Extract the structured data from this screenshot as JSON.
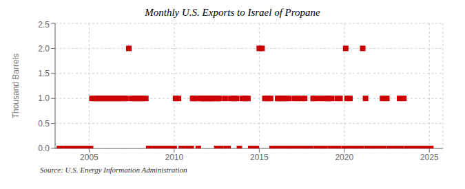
{
  "chart_data": {
    "type": "scatter",
    "title": "Monthly U.S. Exports to Israel of Propane",
    "y_label": "Thousand Barrels",
    "annotations": [
      "Source: U.S. Energy Information Administration"
    ],
    "color": "#cc0000",
    "marker": "square",
    "grid": true,
    "xlim": [
      2003.0,
      2025.8
    ],
    "xticks": [
      2005,
      2010,
      2015,
      2020,
      2025
    ],
    "ylim": [
      0,
      2.5
    ],
    "yticks": [
      {
        "value": 0,
        "label": "0.0"
      },
      0.5,
      {
        "value": 1,
        "label": "1.0"
      },
      1.5,
      {
        "value": 2,
        "label": "2.0"
      },
      2.5
    ],
    "x": [
      2003.25,
      2003.5,
      2003.75,
      2004,
      2004.1666666666667,
      2004.3333333333333,
      2004.5,
      2004.6666666666667,
      2004.8333333333333,
      2005.0833333333333,
      2005.1666666666667,
      2005.3333333333333,
      2005.5,
      2005.6666666666667,
      2005.8333333333333,
      2006,
      2006.1666666666667,
      2006.3333333333333,
      2006.5,
      2006.6666666666667,
      2006.8333333333333,
      2007,
      2007.1666666666667,
      2007.3333333333333,
      2007.5,
      2007.6666666666667,
      2007.8333333333333,
      2008,
      2008.1666666666667,
      2008.3333333333333,
      2008.5,
      2008.6666666666667,
      2008.8333333333333,
      2009,
      2009.1666666666667,
      2009.3333333333333,
      2009.5,
      2009.6666666666667,
      2009.8333333333333,
      2010,
      2010.0833333333333,
      2010.25,
      2010.4166666666667,
      2010.5833333333333,
      2010.75,
      2011,
      2011.0833333333333,
      2011.1666666666667,
      2011.3333333333333,
      2011.4166666666667,
      2011.5833333333333,
      2011.6666666666667,
      2011.75,
      2011.8333333333333,
      2012,
      2012.0833333333333,
      2012.1666666666667,
      2012.25,
      2012.4166666666667,
      2012.5,
      2012.5833333333333,
      2012.6666666666667,
      2012.75,
      2013,
      2013.0833333333333,
      2013.1666666666667,
      2013.3333333333333,
      2013.5,
      2013.6666666666667,
      2013.8333333333333,
      2014,
      2014.1666666666667,
      2014.3333333333333,
      2014.5,
      2014.6666666666667,
      2014.8333333333333,
      2015,
      2015.1666666666667,
      2015.3333333333333,
      2015.5,
      2015.6666666666667,
      2015.75,
      2016,
      2016.0833333333333,
      2016.1666666666667,
      2016.25,
      2016.3333333333333,
      2016.4166666666667,
      2016.5,
      2016.5833333333333,
      2016.6666666666667,
      2016.75,
      2016.8333333333333,
      2017,
      2017.0833333333333,
      2017.1666666666667,
      2017.25,
      2017.3333333333333,
      2017.4166666666667,
      2017.5,
      2017.5833333333333,
      2017.6666666666667,
      2017.8333333333333,
      2018,
      2018.1666666666667,
      2018.25,
      2018.3333333333333,
      2018.4166666666667,
      2018.5,
      2018.5833333333333,
      2018.6666666666667,
      2018.75,
      2018.8333333333333,
      2019,
      2019.0833333333333,
      2019.1666666666667,
      2019.25,
      2019.3333333333333,
      2019.4166666666667,
      2019.5,
      2019.5833333333333,
      2019.6666666666667,
      2019.75,
      2020,
      2020.0833333333333,
      2020.1666666666667,
      2020.25,
      2020.3333333333333,
      2020.4166666666667,
      2020.5,
      2020.5833333333333,
      2020.75,
      2021,
      2021.0833333333333,
      2021.25,
      2021.3333333333333,
      2021.5,
      2021.6666666666667,
      2021.8333333333333,
      2022,
      2022.1666666666667,
      2022.25,
      2022.3333333333333,
      2022.5,
      2022.6666666666667,
      2022.75,
      2023,
      2023.1666666666667,
      2023.25,
      2023.3333333333333,
      2023.5,
      2023.6666666666667,
      2023.8333333333333,
      2024,
      2024.1666666666667,
      2024.25,
      2024.4166666666667,
      2024.5833333333333,
      2024.75,
      2025,
      2025.0833333333333
    ],
    "values": [
      0,
      0,
      0,
      0,
      0,
      0,
      0,
      0,
      0,
      0,
      1,
      1,
      1,
      1,
      1,
      1,
      1,
      1,
      1,
      1,
      1,
      1,
      1,
      2,
      1,
      1,
      1,
      1,
      1,
      1,
      0,
      0,
      0,
      0,
      0,
      0,
      0,
      0,
      0,
      0,
      1,
      1,
      0,
      0,
      0,
      0,
      1,
      1,
      1,
      0,
      1,
      1,
      1,
      1,
      1,
      1,
      1,
      1,
      1,
      0,
      1,
      1,
      0,
      1,
      0,
      0,
      1,
      1,
      1,
      0,
      1,
      1,
      1,
      0,
      0,
      0,
      2,
      2,
      1,
      1,
      1,
      0,
      0,
      1,
      1,
      0,
      1,
      1,
      0,
      1,
      0,
      1,
      0,
      0,
      1,
      0,
      1,
      0,
      0,
      1,
      0,
      1,
      0,
      0,
      1,
      1,
      0,
      0,
      1,
      0,
      0,
      1,
      0,
      1,
      1,
      0,
      1,
      0,
      0,
      0,
      1,
      0,
      1,
      0,
      2,
      1,
      0,
      1,
      0,
      0,
      0,
      0,
      0,
      2,
      1,
      0,
      0,
      0,
      0,
      0,
      0,
      1,
      0,
      1,
      0,
      0,
      0,
      0,
      1,
      0,
      1,
      0,
      0,
      0,
      0,
      0,
      0,
      0,
      0,
      0,
      0
    ]
  }
}
